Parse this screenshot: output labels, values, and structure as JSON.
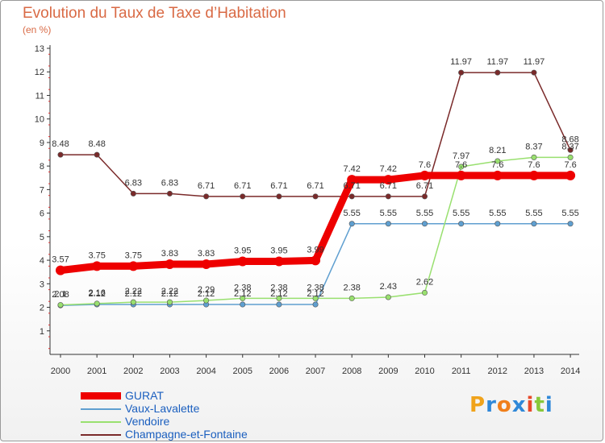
{
  "chart_data": {
    "type": "line",
    "title": "Evolution du Taux de Taxe d’Habitation",
    "subtitle": "(en %)",
    "x": [
      "2000",
      "2001",
      "2002",
      "2003",
      "2004",
      "2005",
      "2006",
      "2007",
      "2008",
      "2009",
      "2010",
      "2011",
      "2012",
      "2013",
      "2014"
    ],
    "ylim": [
      1,
      13
    ],
    "yticks": [
      1,
      2,
      3,
      4,
      5,
      6,
      7,
      8,
      9,
      10,
      11,
      12,
      13
    ],
    "grid": false,
    "legend_position": "bottom-left",
    "series": [
      {
        "name": "GURAT",
        "color": "#ee0000",
        "values": [
          3.57,
          3.75,
          3.75,
          3.83,
          3.83,
          3.95,
          3.95,
          3.99,
          7.42,
          7.42,
          7.6,
          7.6,
          7.6,
          7.6,
          7.6
        ],
        "labels": [
          "3.57",
          "3.75",
          "3.75",
          "3.83",
          "3.83",
          "3.95",
          "3.95",
          "3.99",
          "7.42",
          "7.42",
          "7.6",
          "7.6",
          "7.6",
          "7.6",
          "7.6"
        ]
      },
      {
        "name": "Vaux-Lavalette",
        "color": "#5f9fd0",
        "values": [
          2.08,
          2.12,
          2.12,
          2.12,
          2.12,
          2.12,
          2.12,
          2.12,
          5.55,
          5.55,
          5.55,
          5.55,
          5.55,
          5.55,
          5.55
        ],
        "labels": [
          "2.08",
          "2.12",
          "2.12",
          "2.12",
          "2.12",
          "2.12",
          "2.12",
          "2.12",
          "5.55",
          "5.55",
          "5.55",
          "5.55",
          "5.55",
          "5.55",
          "5.55"
        ]
      },
      {
        "name": "Vendoire",
        "color": "#99e06f",
        "values": [
          2.1,
          2.16,
          2.22,
          2.22,
          2.29,
          2.38,
          2.38,
          2.38,
          2.38,
          2.43,
          2.62,
          7.97,
          8.21,
          8.37,
          8.37
        ],
        "labels": [
          "2.1",
          "2.16",
          "2.22",
          "2.22",
          "2.29",
          "2.38",
          "2.38",
          "2.38",
          "2.38",
          "2.43",
          "2.62",
          "7.97",
          "8.21",
          "8.37",
          "8.37"
        ]
      },
      {
        "name": "Champagne-et-Fontaine",
        "color": "#7a2a2a",
        "values": [
          8.48,
          8.48,
          6.83,
          6.83,
          6.71,
          6.71,
          6.71,
          6.71,
          6.71,
          6.71,
          6.71,
          11.97,
          11.97,
          11.97,
          8.68
        ],
        "labels": [
          "8.48",
          "8.48",
          "6.83",
          "6.83",
          "6.71",
          "6.71",
          "6.71",
          "6.71",
          "6.71",
          "6.71",
          "6.71",
          "11.97",
          "11.97",
          "11.97",
          "8.68"
        ]
      }
    ]
  },
  "logo": {
    "letters": [
      "P",
      "r",
      "o",
      "x",
      "i",
      "t",
      "i"
    ],
    "colors": [
      "#f0a31b",
      "#2f88d8",
      "#f07f1b",
      "#2f88d8",
      "#e84a2a",
      "#88c83a",
      "#2f88d8"
    ]
  }
}
